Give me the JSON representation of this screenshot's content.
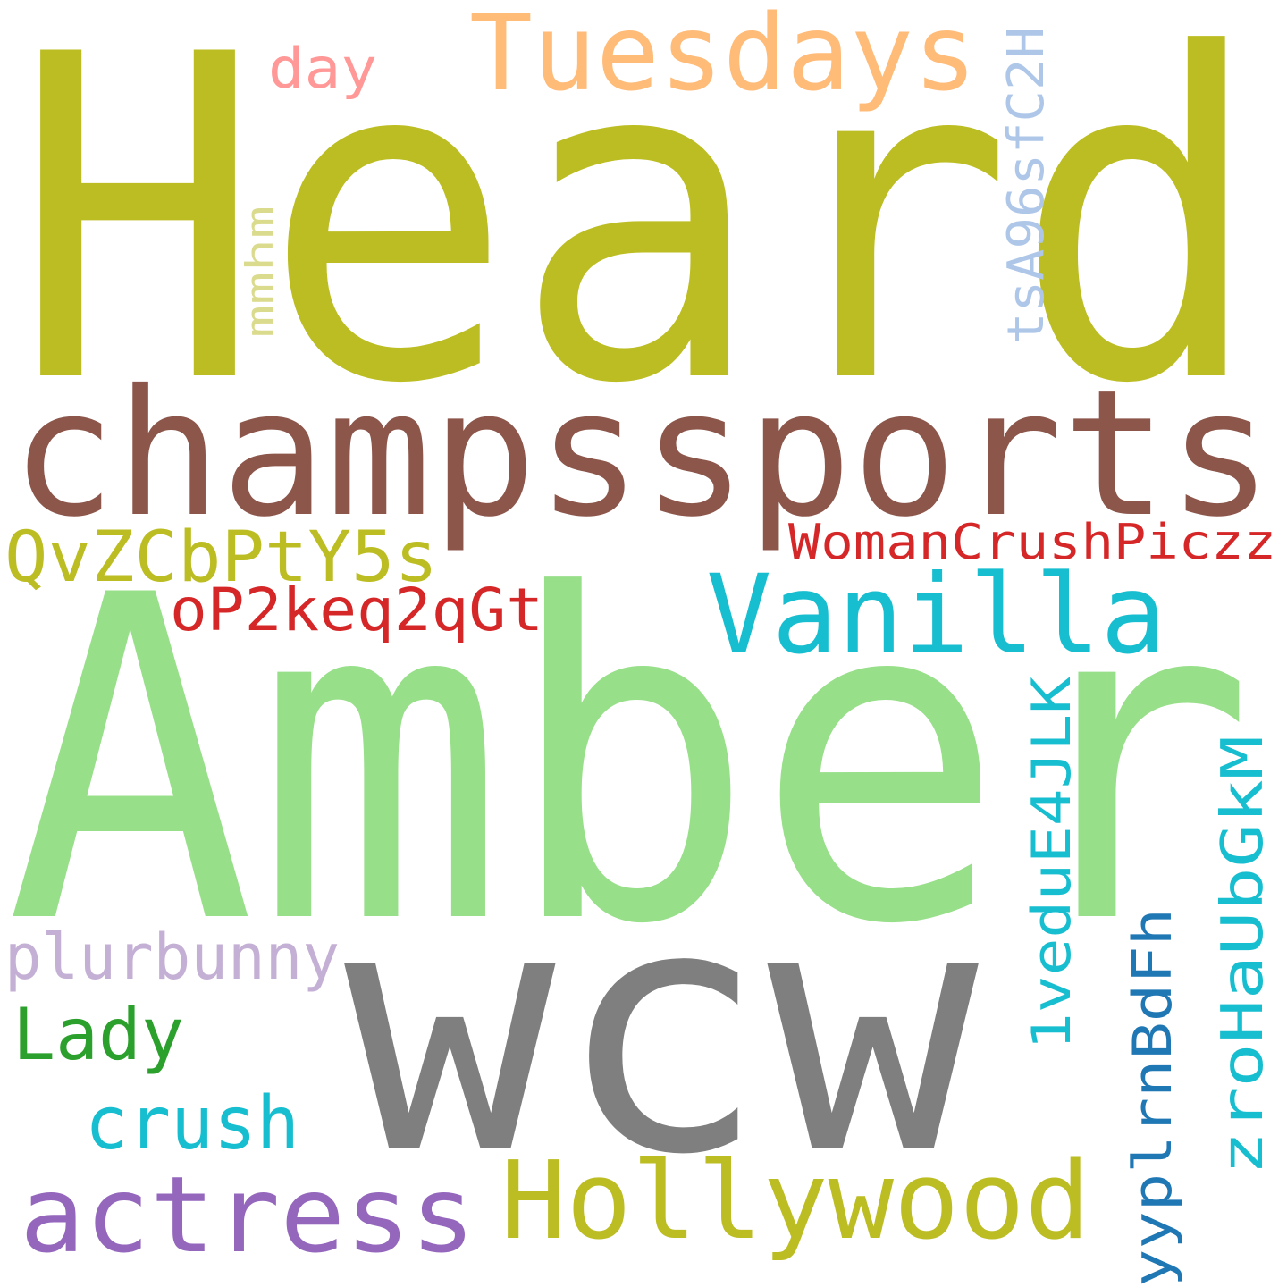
{
  "words": [
    {
      "text": "Heard",
      "color": "#bcbd22",
      "orientation": "horizontal"
    },
    {
      "text": "Amber",
      "color": "#98df8a",
      "orientation": "horizontal"
    },
    {
      "text": "wcw",
      "color": "#7f7f7f",
      "orientation": "horizontal"
    },
    {
      "text": "champssports",
      "color": "#8c564b",
      "orientation": "horizontal"
    },
    {
      "text": "Tuesdays",
      "color": "#ffbb78",
      "orientation": "horizontal"
    },
    {
      "text": "Vanilla",
      "color": "#17becf",
      "orientation": "horizontal"
    },
    {
      "text": "Hollywood",
      "color": "#bcbd22",
      "orientation": "horizontal"
    },
    {
      "text": "actress",
      "color": "#9467bd",
      "orientation": "horizontal"
    },
    {
      "text": "QvZCbPtY5s",
      "color": "#bcbd22",
      "orientation": "horizontal"
    },
    {
      "text": "WomanCrushPiczz",
      "color": "#d62728",
      "orientation": "horizontal"
    },
    {
      "text": "oP2keq2qGt",
      "color": "#d62728",
      "orientation": "horizontal"
    },
    {
      "text": "plurbunny",
      "color": "#c5b0d5",
      "orientation": "horizontal"
    },
    {
      "text": "Lady",
      "color": "#2ca02c",
      "orientation": "horizontal"
    },
    {
      "text": "crush",
      "color": "#17becf",
      "orientation": "horizontal"
    },
    {
      "text": "day",
      "color": "#ff9896",
      "orientation": "horizontal"
    },
    {
      "text": "mmhm",
      "color": "#dbdb8d",
      "orientation": "vertical"
    },
    {
      "text": "tsA96sfC2H",
      "color": "#aec7e8",
      "orientation": "vertical"
    },
    {
      "text": "1veduE4JLK",
      "color": "#17becf",
      "orientation": "vertical"
    },
    {
      "text": "yyplrnBdFh",
      "color": "#1f77b4",
      "orientation": "vertical"
    },
    {
      "text": "zroHaUbGkM",
      "color": "#17becf",
      "orientation": "vertical"
    }
  ]
}
